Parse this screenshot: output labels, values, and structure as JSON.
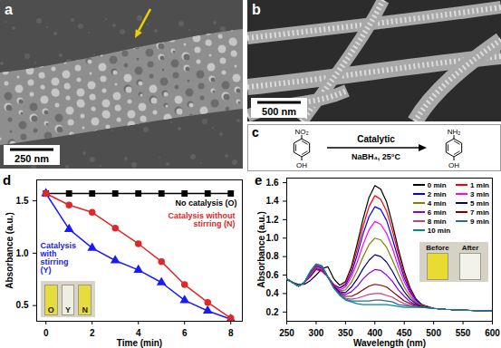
{
  "panels": {
    "a": {
      "label": "a",
      "scale_bar": "250 nm"
    },
    "b": {
      "label": "b",
      "scale_bar": "500 nm"
    },
    "c": {
      "label": "c",
      "reactant_groups": [
        "NO₂",
        "OH"
      ],
      "product_groups": [
        "NH₂",
        "OH"
      ],
      "arrow_above": "Catalytic",
      "arrow_below": "NaBH₄, 25°C"
    }
  },
  "chart_data": [
    {
      "type": "line",
      "title": "d",
      "x_label": "Time (min)",
      "y_label": "Absorbance (a.u.)",
      "x": [
        0,
        1,
        2,
        3,
        4,
        5,
        6,
        7,
        8
      ],
      "xlim": [
        -0.4,
        8.5
      ],
      "xticks": [
        0,
        2,
        4,
        6,
        8
      ],
      "ylim": [
        0.35,
        1.7
      ],
      "yticks": [
        0.5,
        {
          "value": 1,
          "label": "1.0"
        },
        1.5
      ],
      "grid": false,
      "series": [
        {
          "name": "No catalysis (O)",
          "color": "#000000",
          "marker": "square",
          "line_style": "solid",
          "values": [
            1.57,
            1.57,
            1.57,
            1.57,
            1.57,
            1.57,
            1.57,
            1.57,
            1.57
          ]
        },
        {
          "name": "Catalysis with stirring (Y)",
          "color": "#1a1aff",
          "marker": "triangle",
          "line_style": "solid",
          "values": [
            1.57,
            1.23,
            1.05,
            0.93,
            0.84,
            0.72,
            0.55,
            0.45,
            0.37
          ]
        },
        {
          "name": "Catalysis without stirring (N)",
          "color": "#e02828",
          "marker": "circle",
          "line_style": "solid",
          "values": [
            1.57,
            1.46,
            1.39,
            1.24,
            1.09,
            0.92,
            0.7,
            0.53,
            0.38
          ]
        }
      ],
      "annotations": [
        "O",
        "Y",
        "N"
      ]
    },
    {
      "type": "line",
      "title": "e",
      "x_label": "Wavelength (nm)",
      "y_label": "Absorbance (a.u.)",
      "x": [
        250,
        260,
        270,
        280,
        290,
        300,
        310,
        320,
        330,
        340,
        350,
        360,
        370,
        380,
        390,
        400,
        410,
        420,
        430,
        440,
        450,
        460,
        470,
        480,
        500,
        520,
        550,
        600
      ],
      "xlim": [
        250,
        600
      ],
      "xticks": [
        250,
        300,
        350,
        400,
        450,
        500,
        550,
        600
      ],
      "ylim": [
        0.1,
        1.65
      ],
      "yticks": [
        0.2,
        0.4,
        0.6,
        0.8,
        {
          "value": 1,
          "label": "1.0"
        },
        1.2,
        1.4,
        1.6
      ],
      "grid": false,
      "legend": "top-right",
      "series": [
        {
          "name": "0 min",
          "color": "#000000",
          "values": [
            0.55,
            0.52,
            0.5,
            0.5,
            0.54,
            0.6,
            0.67,
            0.69,
            0.56,
            0.49,
            0.53,
            0.69,
            0.94,
            1.21,
            1.44,
            1.57,
            1.53,
            1.39,
            1.15,
            0.88,
            0.64,
            0.46,
            0.34,
            0.28,
            0.24,
            0.23,
            0.22,
            0.21
          ]
        },
        {
          "name": "1 min",
          "color": "#ff0000",
          "values": [
            0.56,
            0.52,
            0.48,
            0.52,
            0.58,
            0.66,
            0.64,
            0.58,
            0.5,
            0.46,
            0.51,
            0.66,
            0.88,
            1.13,
            1.34,
            1.46,
            1.42,
            1.29,
            1.08,
            0.83,
            0.61,
            0.44,
            0.33,
            0.27,
            0.24,
            0.23,
            0.22,
            0.21
          ]
        },
        {
          "name": "2 min",
          "color": "#0000ff",
          "values": [
            0.56,
            0.52,
            0.48,
            0.52,
            0.59,
            0.67,
            0.65,
            0.58,
            0.49,
            0.46,
            0.49,
            0.62,
            0.82,
            1.05,
            1.23,
            1.34,
            1.31,
            1.19,
            0.99,
            0.77,
            0.57,
            0.42,
            0.33,
            0.27,
            0.24,
            0.23,
            0.22,
            0.21
          ]
        },
        {
          "name": "3 min",
          "color": "#ff00ff",
          "values": [
            0.56,
            0.52,
            0.48,
            0.52,
            0.6,
            0.68,
            0.66,
            0.58,
            0.49,
            0.44,
            0.47,
            0.58,
            0.74,
            0.93,
            1.09,
            1.18,
            1.15,
            1.05,
            0.89,
            0.69,
            0.53,
            0.4,
            0.31,
            0.27,
            0.24,
            0.23,
            0.22,
            0.21
          ]
        },
        {
          "name": "4 min",
          "color": "#808000",
          "values": [
            0.56,
            0.52,
            0.48,
            0.52,
            0.61,
            0.69,
            0.67,
            0.58,
            0.48,
            0.43,
            0.44,
            0.52,
            0.65,
            0.8,
            0.93,
            1.0,
            0.98,
            0.9,
            0.76,
            0.61,
            0.47,
            0.37,
            0.3,
            0.27,
            0.24,
            0.23,
            0.22,
            0.21
          ]
        },
        {
          "name": "5 min",
          "color": "#000080",
          "values": [
            0.56,
            0.52,
            0.48,
            0.52,
            0.62,
            0.7,
            0.68,
            0.58,
            0.48,
            0.42,
            0.41,
            0.47,
            0.56,
            0.67,
            0.76,
            0.82,
            0.8,
            0.74,
            0.64,
            0.52,
            0.42,
            0.34,
            0.29,
            0.26,
            0.24,
            0.23,
            0.22,
            0.21
          ]
        },
        {
          "name": "6 min",
          "color": "#8000ff",
          "values": [
            0.56,
            0.52,
            0.48,
            0.52,
            0.62,
            0.7,
            0.68,
            0.58,
            0.47,
            0.41,
            0.39,
            0.42,
            0.48,
            0.56,
            0.62,
            0.66,
            0.65,
            0.6,
            0.53,
            0.44,
            0.37,
            0.31,
            0.28,
            0.26,
            0.24,
            0.23,
            0.22,
            0.21
          ]
        },
        {
          "name": "7 min",
          "color": "#800000",
          "values": [
            0.56,
            0.52,
            0.48,
            0.52,
            0.63,
            0.71,
            0.69,
            0.58,
            0.47,
            0.4,
            0.37,
            0.37,
            0.4,
            0.44,
            0.48,
            0.5,
            0.49,
            0.47,
            0.42,
            0.37,
            0.32,
            0.29,
            0.27,
            0.26,
            0.24,
            0.23,
            0.22,
            0.21
          ]
        },
        {
          "name": "8 min",
          "color": "#c04080",
          "values": [
            0.56,
            0.52,
            0.48,
            0.52,
            0.63,
            0.71,
            0.69,
            0.58,
            0.46,
            0.39,
            0.35,
            0.34,
            0.35,
            0.37,
            0.39,
            0.4,
            0.4,
            0.38,
            0.36,
            0.32,
            0.29,
            0.27,
            0.26,
            0.25,
            0.24,
            0.23,
            0.22,
            0.21
          ]
        },
        {
          "name": "9 min",
          "color": "#336699",
          "values": [
            0.56,
            0.52,
            0.48,
            0.52,
            0.64,
            0.72,
            0.7,
            0.58,
            0.46,
            0.39,
            0.34,
            0.32,
            0.32,
            0.32,
            0.32,
            0.33,
            0.33,
            0.32,
            0.31,
            0.28,
            0.27,
            0.26,
            0.26,
            0.25,
            0.24,
            0.23,
            0.22,
            0.21
          ]
        },
        {
          "name": "10 min",
          "color": "#008b8b",
          "values": [
            0.56,
            0.52,
            0.48,
            0.52,
            0.64,
            0.72,
            0.7,
            0.58,
            0.46,
            0.38,
            0.33,
            0.31,
            0.29,
            0.28,
            0.28,
            0.28,
            0.28,
            0.28,
            0.27,
            0.26,
            0.25,
            0.25,
            0.25,
            0.25,
            0.24,
            0.23,
            0.22,
            0.21
          ]
        }
      ],
      "annotations": [
        "Before",
        "After"
      ]
    }
  ]
}
